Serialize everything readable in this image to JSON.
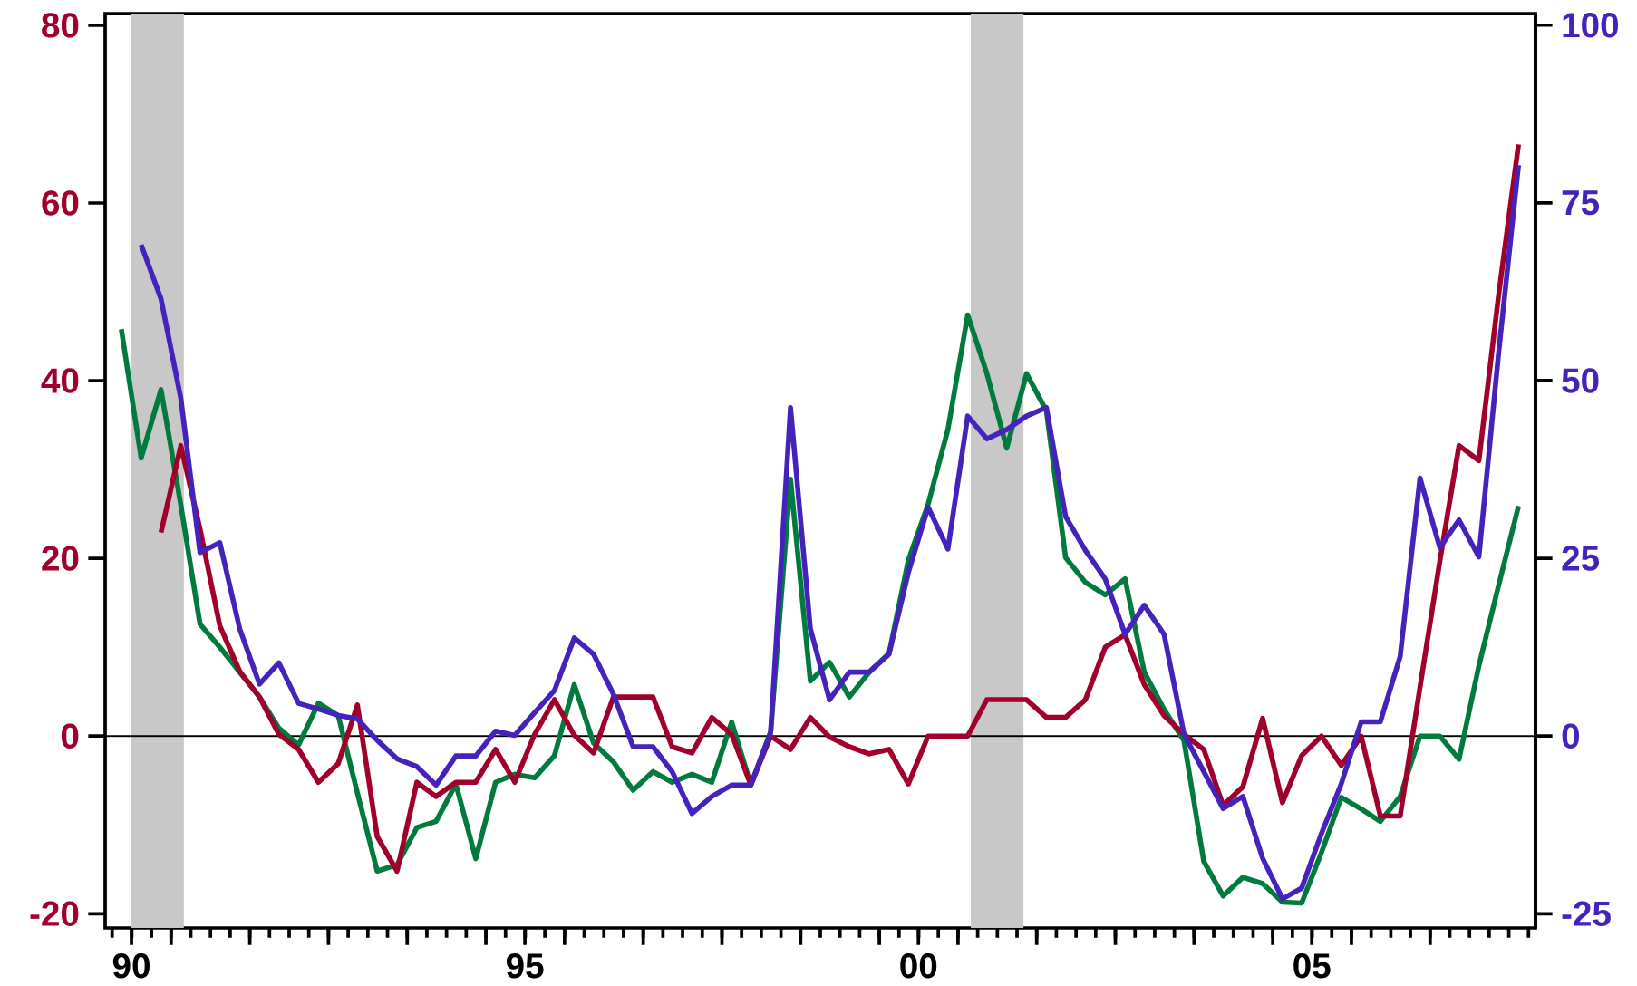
{
  "chart_data": {
    "type": "line",
    "x": [
      "1990-05-15",
      "1990-08-15",
      "1990-11-15",
      "1991-02-15",
      "1991-05-15",
      "1991-08-15",
      "1991-11-15",
      "1992-02-15",
      "1992-05-15",
      "1992-08-15",
      "1992-11-15",
      "1993-02-15",
      "1993-05-15",
      "1993-08-15",
      "1993-11-15",
      "1994-02-15",
      "1994-05-15",
      "1994-08-15",
      "1994-11-15",
      "1995-02-15",
      "1995-05-15",
      "1995-08-15",
      "1995-11-15",
      "1996-02-15",
      "1996-05-15",
      "1996-08-15",
      "1996-11-15",
      "1997-02-15",
      "1997-05-15",
      "1997-08-15",
      "1997-11-15",
      "1998-02-15",
      "1998-05-15",
      "1998-08-15",
      "1998-11-15",
      "1999-02-15",
      "1999-05-15",
      "1999-08-15",
      "1999-11-15",
      "2000-02-15",
      "2000-05-15",
      "2000-08-15",
      "2000-11-15",
      "2001-02-15",
      "2001-05-15",
      "2001-08-15",
      "2001-11-15",
      "2002-02-15",
      "2002-05-15",
      "2002-08-15",
      "2002-11-15",
      "2003-02-15",
      "2003-05-15",
      "2003-08-15",
      "2003-11-15",
      "2004-02-15",
      "2004-05-15",
      "2004-08-15",
      "2004-11-15",
      "2005-02-15",
      "2005-05-15",
      "2005-08-15",
      "2005-11-15",
      "2006-02-15",
      "2006-05-15",
      "2006-08-15",
      "2006-11-15",
      "2007-02-15",
      "2007-05-15",
      "2007-08-15",
      "2007-11-15",
      "2008-02-15"
    ],
    "xlim": [
      "1990-03-01",
      "2008-05-04"
    ],
    "xticks": [
      {
        "value": "1990-07-01",
        "label": "90"
      },
      {
        "value": "1991-01-01",
        "label": null
      },
      {
        "value": "1992-01-01",
        "label": null
      },
      {
        "value": "1993-01-01",
        "label": null
      },
      {
        "value": "1994-01-01",
        "label": null
      },
      {
        "value": "1995-01-01",
        "label": null
      },
      {
        "value": "1995-07-01",
        "label": "95"
      },
      {
        "value": "1996-01-01",
        "label": null
      },
      {
        "value": "1997-01-01",
        "label": null
      },
      {
        "value": "1998-01-01",
        "label": null
      },
      {
        "value": "1999-01-01",
        "label": null
      },
      {
        "value": "2000-01-01",
        "label": null
      },
      {
        "value": "2000-07-01",
        "label": "00"
      },
      {
        "value": "2001-01-01",
        "label": null
      },
      {
        "value": "2002-01-01",
        "label": null
      },
      {
        "value": "2003-01-01",
        "label": null
      },
      {
        "value": "2004-01-01",
        "label": null
      },
      {
        "value": "2005-01-01",
        "label": null
      },
      {
        "value": "2005-07-01",
        "label": "05"
      },
      {
        "value": "2006-01-01",
        "label": null
      },
      {
        "value": "2007-01-01",
        "label": null
      }
    ],
    "ylim": [
      -21.6,
      81.3
    ],
    "yticks": [
      -20,
      0,
      20,
      40,
      60,
      80
    ],
    "y2lim": [
      -27,
      101.6
    ],
    "y2ticks": [
      -25,
      0,
      25,
      50,
      75,
      100
    ],
    "series": [
      {
        "color": "#007a3d",
        "values": [
          45.8,
          31.3,
          39.0,
          26,
          12.6,
          10.0,
          7.2,
          4.4,
          0.9,
          -1.0,
          3.7,
          2.3,
          -6.4,
          -15.2,
          -14.5,
          -10.3,
          -9.6,
          -5.4,
          -13.8,
          -5.2,
          -4.3,
          -4.7,
          -2.2,
          5.8,
          -0.8,
          -2.9,
          -6.1,
          -4.0,
          -5.2,
          -4.3,
          -5.2,
          1.6,
          -5.5,
          0.5,
          28.9,
          6.2,
          8.3,
          4.4,
          7.2,
          9.3,
          19.8,
          26.1,
          34.5,
          47.4,
          40.8,
          32.4,
          40.8,
          36.6,
          20.1,
          17.3,
          15.9,
          17.7,
          7.2,
          3.0,
          -0.5,
          -14.1,
          -18.0,
          -15.9,
          -16.6,
          -18.7,
          -18.8,
          -13.1,
          -6.9,
          -8.2,
          -9.6,
          -6.8,
          0,
          0,
          -2.6,
          7.9,
          17.0,
          25.9
        ]
      },
      {
        "color": "#4422bb",
        "axis": "y2",
        "values": [
          null,
          69.1,
          61.5,
          47.5,
          25.8,
          27.2,
          15.1,
          7.3,
          10.3,
          4.6,
          3.8,
          2.9,
          2.4,
          -0.6,
          -3.2,
          -4.3,
          -6.9,
          -2.8,
          -2.8,
          0.7,
          0.1,
          3.3,
          6.4,
          13.8,
          11.5,
          5.9,
          -1.5,
          -1.5,
          -5.0,
          -10.9,
          -8.5,
          -6.9,
          -6.9,
          0.5,
          46.2,
          15.1,
          5.1,
          9.0,
          9.0,
          11.5,
          23.0,
          32.2,
          26.3,
          45.0,
          41.8,
          43.1,
          45.0,
          46.2,
          30.9,
          26.1,
          22.1,
          14.3,
          18.4,
          14.3,
          0.3,
          -5.0,
          -10.2,
          -8.5,
          -17.2,
          -22.9,
          -21.4,
          -13.7,
          -6.7,
          2.0,
          2.0,
          11.2,
          36.3,
          26.5,
          30.4,
          25.2,
          54.0,
          80.3
        ]
      },
      {
        "color": "#a0002a",
        "values": [
          null,
          null,
          22.9,
          32.7,
          23.3,
          12.4,
          7.3,
          4.4,
          0.2,
          -1.5,
          -5.2,
          -3.1,
          3.5,
          -11.3,
          -15.2,
          -5.2,
          -6.8,
          -5.2,
          -5.2,
          -1.5,
          -5.2,
          0.2,
          4.1,
          0.1,
          -1.9,
          4.4,
          4.4,
          4.4,
          -1.2,
          -1.9,
          2.1,
          0.2,
          -5.5,
          0,
          -1.5,
          2.1,
          -0.1,
          -1.2,
          -2.0,
          -1.5,
          -5.4,
          0,
          0,
          0,
          4.1,
          4.1,
          4.1,
          2.1,
          2.1,
          4.1,
          10.0,
          11.4,
          5.8,
          2.3,
          0.2,
          -1.5,
          -7.8,
          -5.7,
          2.0,
          -7.5,
          -2.2,
          0,
          -3.3,
          0,
          -9.0,
          -9.0,
          5.5,
          19.7,
          32.7,
          31.0,
          49.7,
          66.6
        ]
      }
    ],
    "ref_lines": [
      {
        "axis": "y",
        "value": 0,
        "color": "#000000"
      }
    ],
    "bands": [
      {
        "axis": "x",
        "from": "1990-07-01",
        "to": "1991-03-01",
        "color": "#c8c8c8"
      },
      {
        "axis": "x",
        "from": "2001-03-01",
        "to": "2001-11-01",
        "color": "#c8c8c8"
      }
    ]
  }
}
